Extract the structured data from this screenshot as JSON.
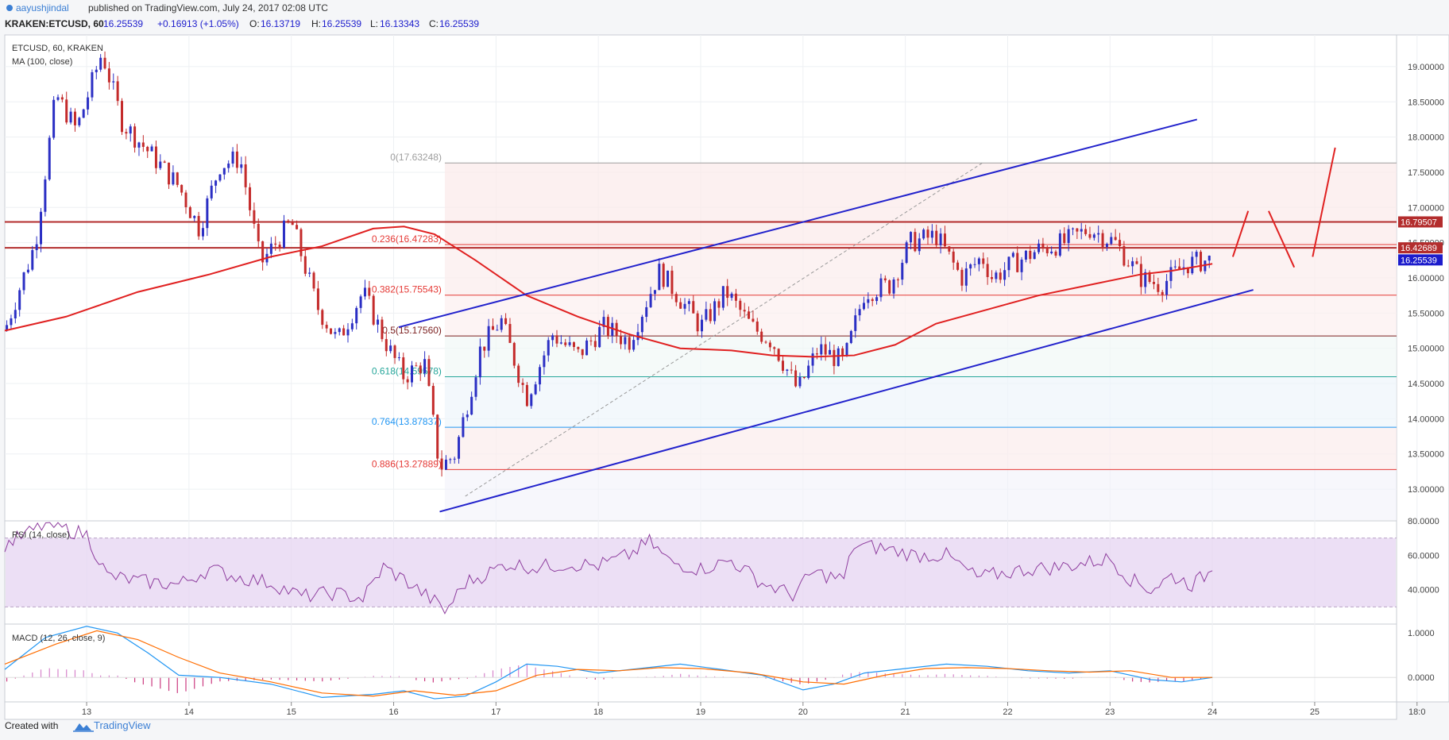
{
  "header": {
    "author": "aayushjindal",
    "published": "published on TradingView.com, July 24, 2017 02:08 UTC",
    "symbol_line": "KRAKEN:ETCUSD, 60",
    "price": "16.25539",
    "change": "+0.16913 (+1.05%)",
    "o_label": "O:",
    "o": "16.13719",
    "h_label": "H:",
    "h": "16.25539",
    "l_label": "L:",
    "l": "16.13343",
    "c_label": "C:",
    "c": "16.25539"
  },
  "legend": {
    "symbol": "ETCUSD, 60, KRAKEN",
    "ma": "MA (100, close)",
    "rsi": "RSI (14, close)",
    "macd": "MACD (12, 26, close, 9)"
  },
  "footer": {
    "created_with": "Created with",
    "brand": "TradingView"
  },
  "colors": {
    "bull": "#2b2fc4",
    "bear": "#c42b2b",
    "ma": "#e02020",
    "channel": "#2222cc",
    "rsi_line": "#8e3d9e",
    "rsi_band": "#e6d4f2",
    "macd": "#2196f3",
    "signal": "#ff6d00",
    "last_price_bg": "#1c1ccc"
  },
  "chart_data": [
    {
      "type": "candlestick",
      "title": "ETCUSD, 60, KRAKEN",
      "x_tick_labels": [
        "13",
        "14",
        "15",
        "16",
        "17",
        "18",
        "19",
        "20",
        "21",
        "22",
        "23",
        "24",
        "25",
        "18:0"
      ],
      "y_tick_labels": [
        "13.00000",
        "13.50000",
        "14.00000",
        "14.50000",
        "15.00000",
        "15.50000",
        "16.00000",
        "16.50000",
        "17.00000",
        "17.50000",
        "18.00000",
        "18.50000",
        "19.00000"
      ],
      "ylim": [
        12.55,
        19.45
      ],
      "xlim_days": [
        12.2,
        25.8
      ],
      "ohlc_path_days": [
        12.2,
        12.5,
        12.7,
        12.9,
        13.15,
        13.35,
        13.6,
        13.9,
        14.1,
        14.3,
        14.5,
        14.7,
        15.0,
        15.25,
        15.45,
        15.7,
        15.95,
        16.1,
        16.3,
        16.45,
        16.6,
        16.85,
        17.05,
        17.3,
        17.55,
        17.8,
        18.05,
        18.3,
        18.6,
        18.8,
        19.0,
        19.25,
        19.5,
        19.7,
        19.95,
        20.15,
        20.4,
        20.6,
        20.85,
        21.05,
        21.3,
        21.55,
        21.75,
        21.85,
        22.05,
        22.3,
        22.55,
        22.8,
        23.05,
        23.3,
        23.5,
        23.75,
        24.0
      ],
      "ohlc_path_close": [
        15.25,
        16.5,
        18.6,
        18.1,
        19.2,
        18.2,
        17.8,
        17.3,
        16.7,
        17.6,
        17.7,
        16.2,
        16.8,
        15.6,
        15.1,
        15.8,
        15.0,
        14.6,
        14.8,
        13.3,
        13.5,
        15.0,
        15.4,
        14.3,
        15.2,
        14.9,
        15.3,
        15.1,
        16.1,
        15.7,
        15.3,
        15.8,
        15.3,
        15.1,
        14.4,
        15.0,
        14.8,
        15.8,
        15.9,
        16.5,
        16.6,
        16.0,
        16.3,
        16.0,
        16.2,
        16.4,
        16.5,
        16.7,
        16.5,
        16.0,
        15.9,
        16.2,
        16.26
      ],
      "last_price": 16.25539,
      "price_level_labels": [
        "16.79507",
        "16.42689",
        "16.25539"
      ],
      "horizontal_levels": [
        16.79507,
        16.42689
      ],
      "fib_levels": [
        {
          "label": "0(17.63248)",
          "value": 17.63248,
          "color": "#9e9e9e"
        },
        {
          "label": "0.236(16.47283)",
          "value": 16.47283,
          "color": "#e53935"
        },
        {
          "label": "0.382(15.75543)",
          "value": 15.75543,
          "color": "#e53935"
        },
        {
          "label": "0.5(15.17560)",
          "value": 15.1756,
          "color": "#7b1f1f"
        },
        {
          "label": "0.618(14.59578)",
          "value": 14.59578,
          "color": "#26a69a"
        },
        {
          "label": "0.764(13.87837)",
          "value": 13.87837,
          "color": "#2196f3"
        },
        {
          "label": "0.886(13.27889)",
          "value": 13.27889,
          "color": "#e53935"
        }
      ],
      "fib_day_range": [
        16.5,
        25.8
      ],
      "channel": {
        "upper": [
          [
            16.05,
            15.3
          ],
          [
            23.85,
            18.25
          ]
        ],
        "lower": [
          [
            16.45,
            12.68
          ],
          [
            24.4,
            15.83
          ]
        ]
      },
      "fib_trend_line": [
        [
          16.7,
          12.9
        ],
        [
          21.75,
          17.63
        ]
      ],
      "ma_series": {
        "name": "MA (100, close)",
        "x": [
          12.2,
          12.8,
          13.5,
          14.2,
          14.8,
          15.3,
          15.8,
          16.1,
          16.4,
          16.8,
          17.3,
          17.8,
          18.3,
          18.8,
          19.3,
          19.7,
          20.1,
          20.5,
          20.9,
          21.3,
          21.8,
          22.3,
          22.8,
          23.3,
          23.6,
          24.0
        ],
        "y": [
          15.25,
          15.45,
          15.8,
          16.05,
          16.3,
          16.45,
          16.7,
          16.73,
          16.62,
          16.25,
          15.75,
          15.45,
          15.2,
          15.0,
          14.97,
          14.9,
          14.88,
          14.9,
          15.05,
          15.35,
          15.55,
          15.75,
          15.9,
          16.05,
          16.1,
          16.2
        ]
      },
      "projection": {
        "x": [
          24.2,
          24.35,
          24.55,
          24.8,
          24.98,
          25.2
        ],
        "y": [
          16.3,
          16.95,
          16.95,
          16.15,
          16.3,
          17.85
        ]
      }
    },
    {
      "type": "line",
      "title": "RSI (14, close)",
      "y_tick_labels": [
        "40.0000",
        "60.0000",
        "80.0000"
      ],
      "ylim": [
        20,
        80
      ],
      "band": [
        30,
        70
      ],
      "x": [
        12.2,
        12.6,
        13.0,
        13.2,
        13.5,
        13.9,
        14.2,
        14.5,
        14.8,
        15.1,
        15.4,
        15.7,
        15.9,
        16.1,
        16.4,
        16.5,
        16.7,
        16.9,
        17.1,
        17.4,
        17.7,
        18.0,
        18.3,
        18.5,
        18.7,
        19.0,
        19.3,
        19.6,
        19.9,
        20.1,
        20.4,
        20.5,
        20.8,
        21.1,
        21.4,
        21.7,
        21.9,
        22.2,
        22.5,
        22.8,
        23.0,
        23.2,
        23.4,
        23.6,
        23.8,
        24.0
      ],
      "y": [
        66,
        78,
        72,
        48,
        45,
        43,
        52,
        47,
        44,
        36,
        38,
        35,
        53,
        46,
        33,
        27,
        44,
        49,
        55,
        53,
        55,
        54,
        60,
        68,
        56,
        52,
        57,
        44,
        37,
        50,
        46,
        66,
        64,
        60,
        60,
        47,
        49,
        52,
        53,
        56,
        58,
        46,
        40,
        48,
        43,
        51
      ]
    },
    {
      "type": "line",
      "title": "MACD (12, 26, close, 9)",
      "y_tick_labels": [
        "0.0000",
        "1.0000"
      ],
      "ylim": [
        -0.55,
        1.2
      ],
      "series": [
        {
          "name": "MACD",
          "x": [
            12.2,
            12.6,
            13.0,
            13.3,
            13.6,
            13.9,
            14.3,
            14.8,
            15.3,
            15.8,
            16.1,
            16.4,
            16.7,
            17.0,
            17.3,
            17.6,
            18.0,
            18.4,
            18.8,
            19.2,
            19.6,
            20.0,
            20.3,
            20.6,
            21.0,
            21.4,
            21.8,
            22.2,
            22.6,
            23.0,
            23.4,
            23.7,
            24.0
          ],
          "y": [
            0.18,
            0.9,
            1.15,
            1.0,
            0.55,
            0.05,
            0.0,
            -0.15,
            -0.45,
            -0.38,
            -0.3,
            -0.48,
            -0.42,
            -0.1,
            0.3,
            0.25,
            0.1,
            0.2,
            0.3,
            0.18,
            0.05,
            -0.28,
            -0.15,
            0.1,
            0.2,
            0.3,
            0.25,
            0.15,
            0.1,
            0.15,
            -0.05,
            -0.1,
            0.0
          ]
        },
        {
          "name": "Signal",
          "x": [
            12.2,
            12.7,
            13.1,
            13.5,
            13.9,
            14.3,
            14.8,
            15.3,
            15.8,
            16.2,
            16.6,
            17.0,
            17.4,
            17.8,
            18.2,
            18.6,
            19.0,
            19.5,
            20.0,
            20.4,
            20.8,
            21.2,
            21.6,
            22.0,
            22.4,
            22.8,
            23.2,
            23.6,
            24.0
          ],
          "y": [
            0.3,
            0.75,
            1.05,
            0.85,
            0.45,
            0.1,
            -0.1,
            -0.35,
            -0.42,
            -0.3,
            -0.4,
            -0.3,
            0.05,
            0.18,
            0.15,
            0.22,
            0.2,
            0.1,
            -0.1,
            -0.15,
            0.05,
            0.2,
            0.22,
            0.2,
            0.15,
            0.12,
            0.15,
            0.0,
            0.0
          ]
        }
      ]
    }
  ]
}
